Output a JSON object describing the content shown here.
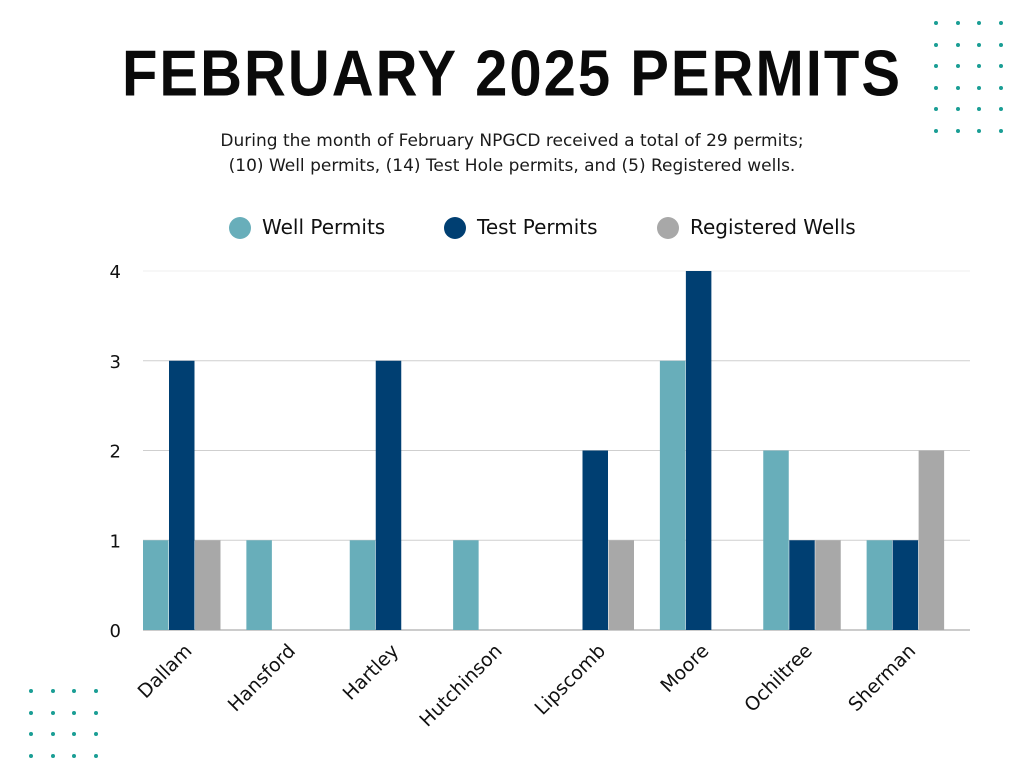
{
  "title": "FEBRUARY 2025 PERMITS",
  "subtitle_lines": [
    "During the month of February NPGCD received a total of 29 permits;",
    "(10) Well permits, (14) Test Hole permits, and (5) Registered wells."
  ],
  "colors": {
    "accent_teal": "#1a9e95",
    "well": "#68aeba",
    "test": "#003f72",
    "registered": "#a8a8a8"
  },
  "chart_data": {
    "type": "bar",
    "categories": [
      "Dallam",
      "Hansford",
      "Hartley",
      "Hutchinson",
      "Lipscomb",
      "Moore",
      "Ochiltree",
      "Sherman"
    ],
    "series": [
      {
        "name": "Well Permits",
        "color": "#68aeba",
        "values": [
          1,
          1,
          1,
          1,
          0,
          3,
          2,
          1
        ]
      },
      {
        "name": "Test Permits",
        "color": "#003f72",
        "values": [
          3,
          0,
          3,
          0,
          2,
          4,
          1,
          1
        ]
      },
      {
        "name": "Registered Wells",
        "color": "#a8a8a8",
        "values": [
          1,
          0,
          0,
          0,
          1,
          0,
          1,
          2
        ]
      }
    ],
    "yticks": [
      "0",
      "1",
      "2",
      "3",
      "4"
    ],
    "ylim": [
      0,
      4
    ],
    "legend": "top",
    "grid": true
  }
}
